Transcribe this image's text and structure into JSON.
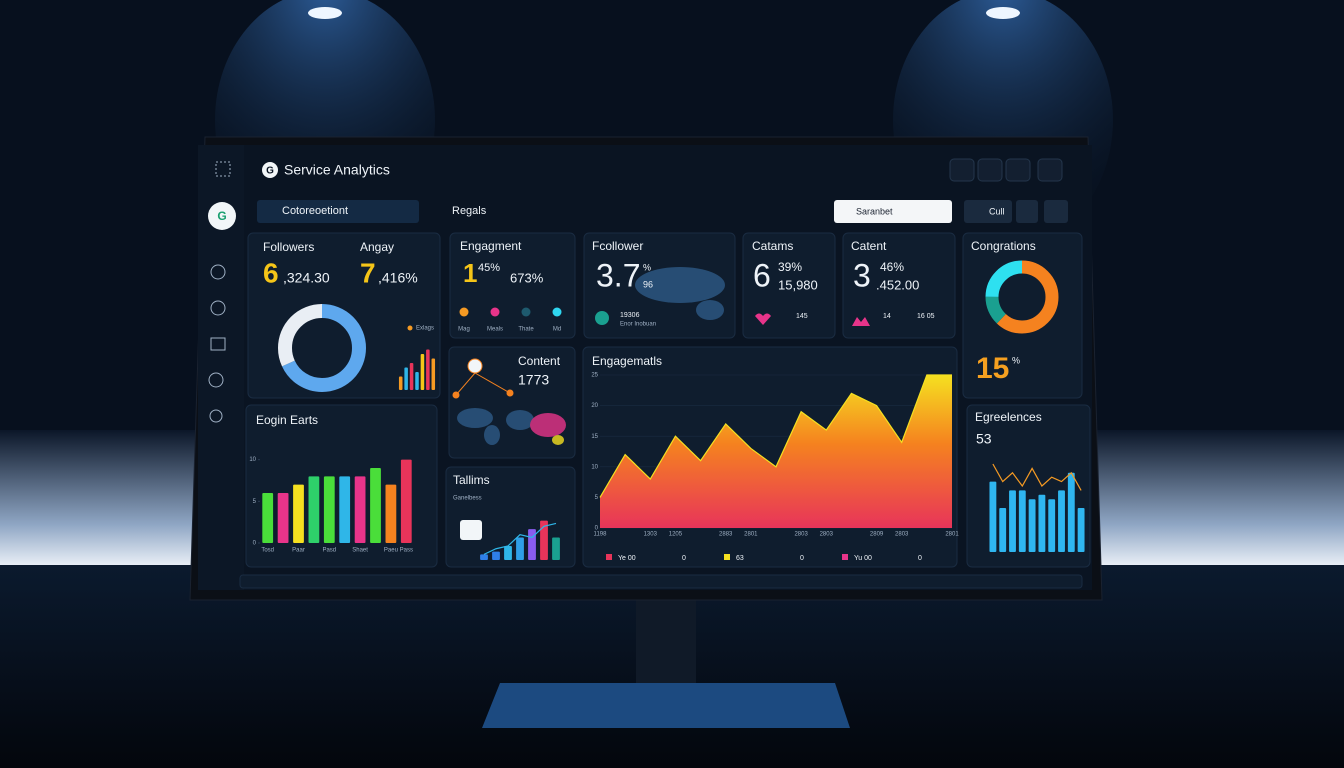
{
  "header": {
    "logo": "G",
    "title": "Service Analytics"
  },
  "sidebar": {
    "avatar": "G"
  },
  "toolbar": {
    "filter": "Cotoreoetiont",
    "region": "Regals",
    "search": "Saranbet",
    "button": "Cull"
  },
  "followers": {
    "title": "Followers",
    "lead": "6",
    "value": ",324.30",
    "title_2": "Angay",
    "lead_2": "7",
    "value_2": ",416%",
    "legend": "Exlags",
    "donut": {
      "type": "pie",
      "values": [
        68,
        32
      ],
      "colors": [
        "#5ea8ee",
        "#e9eef4"
      ]
    },
    "bars": {
      "type": "bar",
      "values": [
        3,
        5,
        6,
        4,
        8,
        9,
        7
      ],
      "colors": [
        "#f59a23",
        "#2fb6e8",
        "#e8345a",
        "#2fb6e8",
        "#f5c518",
        "#e8345a",
        "#f59a23"
      ],
      "ylim": [
        0,
        10
      ]
    }
  },
  "engagement": {
    "title": "Engagment",
    "lead": "1",
    "percent": "45%",
    "value": "673%",
    "legend": [
      {
        "name": "Mag",
        "color": "#f59a23"
      },
      {
        "name": "Meals",
        "color": "#e8348a"
      },
      {
        "name": "Thate",
        "color": "#1e5a6e"
      },
      {
        "name": "Md",
        "color": "#2fd6f0"
      }
    ]
  },
  "follower": {
    "title": "Fcollower",
    "value": "3.7",
    "unit": "%",
    "sub": "96",
    "stat": "19306",
    "stat_label": "Enor Inobuan"
  },
  "catams": {
    "title": "Catams",
    "lead": "6",
    "percent": "39%",
    "value": "15,980",
    "stat": "145"
  },
  "catent": {
    "title": "Catent",
    "lead": "3",
    "percent": "46%",
    "value": ".452.00",
    "stat": "14",
    "stat_2": "16 05"
  },
  "congrations": {
    "title": "Congrations",
    "value": "15",
    "unit": "%",
    "donut": {
      "type": "pie",
      "values": [
        62,
        13,
        25
      ],
      "colors": [
        "#f5821f",
        "#1aa090",
        "#2ee0f0"
      ]
    }
  },
  "content": {
    "title": "Content",
    "value": "1773"
  },
  "tallims": {
    "title": "Tallims",
    "subtitle": "Ganelbess",
    "chart": {
      "type": "bar",
      "values": [
        2,
        3,
        5,
        8,
        11,
        14,
        8
      ],
      "colors": [
        "#2f7fe8",
        "#2f7fe8",
        "#2fb6e8",
        "#2f9fe8",
        "#8a5cf0",
        "#e8345a",
        "#1aa090"
      ],
      "ylim": [
        0,
        16
      ],
      "line_values": [
        2,
        4,
        5,
        9,
        8,
        12,
        13
      ],
      "line_color": "#2fb6e8"
    }
  },
  "earts": {
    "title": "Eogin Earts",
    "chart": {
      "type": "bar",
      "categories": [
        "Tosd",
        null,
        "Paar",
        null,
        "Pasd",
        null,
        "Shaet",
        null,
        "Paeu",
        "Pass"
      ],
      "values": [
        6,
        6,
        7,
        8,
        8,
        8,
        8,
        9,
        7,
        10
      ],
      "colors": [
        "#4ade3a",
        "#e8348a",
        "#f5e020",
        "#2ed06a",
        "#4ade3a",
        "#2fb6e8",
        "#e8348a",
        "#4ade3a",
        "#f5821f",
        "#e8345a"
      ],
      "ylim": [
        0,
        12
      ],
      "yticks": [
        0,
        5,
        10
      ]
    }
  },
  "engagematls": {
    "title": "Engagematls",
    "chart": {
      "type": "area",
      "categories": [
        "1198",
        null,
        "1303",
        "1205",
        null,
        "2883",
        "2801",
        null,
        "2803",
        "2803",
        null,
        "2809",
        "2803",
        null,
        "2801"
      ],
      "values": [
        5,
        12,
        8,
        15,
        11,
        17,
        13,
        10,
        19,
        16,
        22,
        20,
        14,
        25,
        25
      ],
      "ylim": [
        0,
        25
      ],
      "yticks": [
        0,
        5,
        10,
        15,
        20,
        25
      ]
    },
    "legend": [
      {
        "name": "Ye 00",
        "color": "#e8345a",
        "value": "0"
      },
      {
        "name": "63",
        "color": "#f5e020",
        "value": "0"
      },
      {
        "name": "Yu 00",
        "color": "#e8348a",
        "value": "0"
      }
    ]
  },
  "egreelences": {
    "title": "Egreelences",
    "value": "53",
    "chart": {
      "type": "bar",
      "values": [
        16,
        10,
        14,
        14,
        12,
        13,
        12,
        14,
        18,
        10
      ],
      "color": "#2fb6f0",
      "line_values": [
        20,
        16,
        18,
        15,
        19,
        15,
        17,
        16,
        18,
        14
      ],
      "line_color": "#f59a23",
      "ylim": [
        0,
        25
      ]
    }
  }
}
